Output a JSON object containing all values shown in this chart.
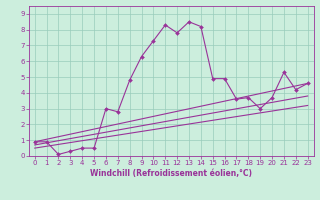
{
  "xlabel": "Windchill (Refroidissement éolien,°C)",
  "bg_color": "#cceedd",
  "line_color": "#993399",
  "grid_color": "#99ccbb",
  "xlim": [
    -0.5,
    23.5
  ],
  "ylim": [
    0,
    9.5
  ],
  "xticks": [
    0,
    1,
    2,
    3,
    4,
    5,
    6,
    7,
    8,
    9,
    10,
    11,
    12,
    13,
    14,
    15,
    16,
    17,
    18,
    19,
    20,
    21,
    22,
    23
  ],
  "yticks": [
    0,
    1,
    2,
    3,
    4,
    5,
    6,
    7,
    8,
    9
  ],
  "line1_x": [
    0,
    1,
    2,
    3,
    4,
    5,
    6,
    7,
    8,
    9,
    10,
    11,
    12,
    13,
    14,
    15,
    16,
    17,
    18,
    19,
    20,
    21,
    22,
    23
  ],
  "line1_y": [
    0.9,
    0.9,
    0.1,
    0.3,
    0.5,
    0.5,
    3.0,
    2.8,
    4.8,
    6.3,
    7.3,
    8.3,
    7.8,
    8.5,
    8.2,
    4.9,
    4.9,
    3.6,
    3.7,
    3.0,
    3.7,
    5.3,
    4.2,
    4.6
  ],
  "line2_x": [
    0,
    23
  ],
  "line2_y": [
    0.9,
    4.6
  ],
  "line3_x": [
    0,
    23
  ],
  "line3_y": [
    0.7,
    3.8
  ],
  "line4_x": [
    0,
    23
  ],
  "line4_y": [
    0.5,
    3.2
  ],
  "tick_fontsize": 5,
  "xlabel_fontsize": 5.5,
  "linewidth": 0.8,
  "markersize": 2.0
}
